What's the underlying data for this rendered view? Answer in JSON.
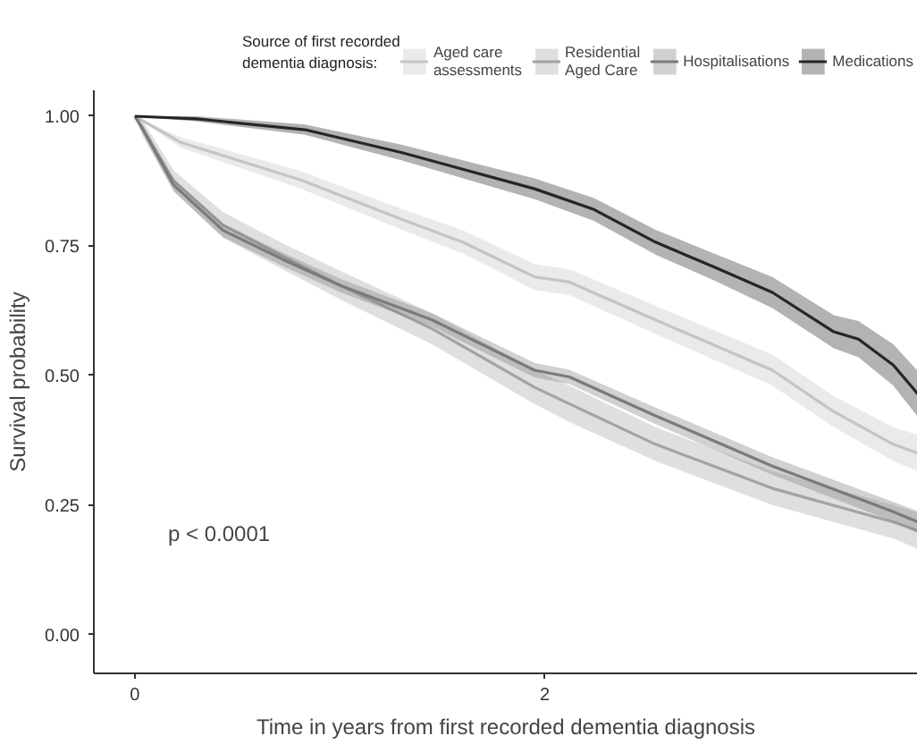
{
  "chart_data": {
    "type": "line",
    "xlabel": "Time in years from first recorded dementia diagnosis",
    "ylabel": "Survival probability",
    "legend_title": "Source of first recorded dementia diagnosis:",
    "legend": "top",
    "grid": false,
    "xlim": [
      -0.2,
      3.82
    ],
    "ylim": [
      -0.075,
      1.05
    ],
    "xticks": [
      0,
      2
    ],
    "yticks": [
      {
        "value": 0,
        "label": "0.00"
      },
      {
        "value": 0.25,
        "label": "0.25"
      },
      {
        "value": 0.5,
        "label": "0.50"
      },
      {
        "value": 0.75,
        "label": "0.75"
      },
      {
        "value": 1,
        "label": "1.00"
      }
    ],
    "annotations": [
      "p < 0.0001"
    ],
    "series": [
      {
        "name": "Aged care assessments",
        "color": "#c4c4c4",
        "x": [
          0,
          0.22,
          0.81,
          1.31,
          1.6,
          1.95,
          2.12,
          2.54,
          3.11,
          3.41,
          3.7,
          3.82
        ],
        "values": [
          1,
          0.95,
          0.877,
          0.8,
          0.757,
          0.69,
          0.68,
          0.607,
          0.51,
          0.43,
          0.367,
          0.35
        ],
        "lower": [
          1,
          0.94,
          0.86,
          0.78,
          0.735,
          0.665,
          0.655,
          0.58,
          0.48,
          0.4,
          0.335,
          0.315
        ],
        "upper": [
          1,
          0.96,
          0.894,
          0.82,
          0.78,
          0.715,
          0.705,
          0.634,
          0.54,
          0.46,
          0.4,
          0.385
        ]
      },
      {
        "name": "Residential Aged Care",
        "color": "#a3a3a3",
        "x": [
          0,
          0.04,
          0.19,
          0.43,
          0.72,
          1.01,
          1.45,
          1.95,
          2.12,
          2.54,
          3.11,
          3.7,
          3.82
        ],
        "values": [
          1,
          0.975,
          0.875,
          0.79,
          0.73,
          0.672,
          0.59,
          0.477,
          0.445,
          0.367,
          0.282,
          0.217,
          0.2
        ],
        "lower": [
          1,
          0.96,
          0.855,
          0.765,
          0.705,
          0.645,
          0.56,
          0.445,
          0.41,
          0.335,
          0.25,
          0.185,
          0.165
        ],
        "upper": [
          1,
          0.99,
          0.895,
          0.815,
          0.755,
          0.7,
          0.62,
          0.51,
          0.48,
          0.4,
          0.315,
          0.25,
          0.235
        ]
      },
      {
        "name": "Hospitalisations",
        "color": "#7a7a7a",
        "x": [
          0,
          0.04,
          0.19,
          0.43,
          0.72,
          1.01,
          1.45,
          1.95,
          2.12,
          2.54,
          3.11,
          3.7,
          3.82
        ],
        "values": [
          1,
          0.974,
          0.867,
          0.78,
          0.724,
          0.672,
          0.607,
          0.51,
          0.497,
          0.422,
          0.325,
          0.237,
          0.217
        ],
        "lower": [
          1,
          0.965,
          0.855,
          0.767,
          0.711,
          0.659,
          0.594,
          0.496,
          0.483,
          0.406,
          0.308,
          0.218,
          0.196
        ],
        "upper": [
          1,
          0.983,
          0.879,
          0.793,
          0.737,
          0.685,
          0.62,
          0.524,
          0.511,
          0.438,
          0.342,
          0.256,
          0.238
        ]
      },
      {
        "name": "Medications",
        "color": "#262626",
        "x": [
          0,
          0.3,
          0.83,
          1.3,
          1.95,
          2.24,
          2.54,
          2.82,
          3.11,
          3.41,
          3.53,
          3.7,
          3.82
        ],
        "values": [
          1,
          0.995,
          0.974,
          0.93,
          0.86,
          0.82,
          0.757,
          0.71,
          0.66,
          0.584,
          0.57,
          0.52,
          0.464
        ],
        "lower": [
          1,
          0.99,
          0.964,
          0.915,
          0.84,
          0.798,
          0.733,
          0.684,
          0.63,
          0.552,
          0.535,
          0.48,
          0.42
        ],
        "upper": [
          1,
          1,
          0.984,
          0.945,
          0.88,
          0.842,
          0.781,
          0.736,
          0.69,
          0.616,
          0.605,
          0.56,
          0.508
        ]
      }
    ]
  }
}
